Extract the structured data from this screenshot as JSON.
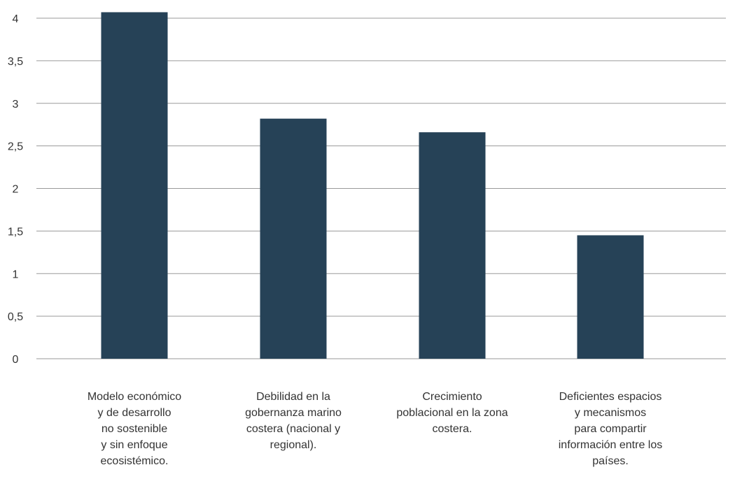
{
  "chart_data": {
    "type": "bar",
    "categories": [
      [
        "Modelo económico",
        "y de desarrollo",
        "no sostenible",
        "y sin enfoque",
        "ecosistémico."
      ],
      [
        "Debilidad en la",
        "gobernanza marino",
        "costera (nacional y",
        "regional)."
      ],
      [
        "Crecimiento",
        "poblacional en la zona",
        "costera."
      ],
      [
        "Deficientes espacios",
        "y mecanismos",
        "para compartir",
        "información entre los",
        "países."
      ]
    ],
    "values": [
      4.07,
      2.82,
      2.66,
      1.45
    ],
    "ylim": [
      0,
      4
    ],
    "yticks": [
      0,
      0.5,
      1,
      1.5,
      2,
      2.5,
      3,
      3.5,
      4
    ],
    "ytick_labels": [
      "0",
      "0,5",
      "1",
      "1,5",
      "2",
      "2,5",
      "3",
      "3,5",
      "4"
    ],
    "bar_color": "#264257",
    "grid": true,
    "grid_color": "#9a9a9a",
    "legend": "none"
  }
}
